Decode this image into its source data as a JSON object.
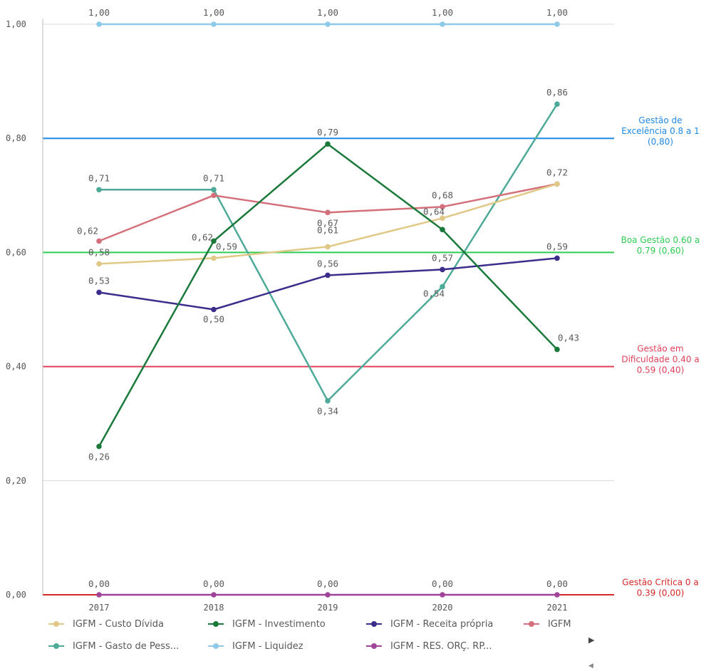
{
  "chart_data": {
    "type": "line",
    "categories": [
      "2017",
      "2018",
      "2019",
      "2020",
      "2021"
    ],
    "ylim": [
      0,
      1
    ],
    "yticks": [
      "0,00",
      "0,20",
      "0,40",
      "0,60",
      "0,80",
      "1,00"
    ],
    "ytick_values": [
      0,
      0.2,
      0.4,
      0.6,
      0.8,
      1.0
    ],
    "grid": true,
    "legend_position": "bottom",
    "series": [
      {
        "name": "IGFM - Custo Dívida",
        "color": "#e0c986",
        "values": [
          0.58,
          0.59,
          0.61,
          0.66,
          0.72
        ],
        "labels": [
          "0,58",
          "0,59",
          "0,61",
          null,
          null
        ]
      },
      {
        "name": "IGFM - Investimento",
        "color": "#1b7a3b",
        "values": [
          0.26,
          0.62,
          0.79,
          0.64,
          0.43
        ],
        "labels": [
          "0,26",
          "0,62",
          "0,79",
          "0,64",
          "0,43"
        ]
      },
      {
        "name": "IGFM - Receita própria",
        "color": "#3a2d8c",
        "values": [
          0.53,
          0.5,
          0.56,
          0.57,
          0.59
        ],
        "labels": [
          "0,53",
          "0,50",
          "0,56",
          "0,57",
          "0,59"
        ]
      },
      {
        "name": "IGFM",
        "color": "#d4707b",
        "values": [
          0.62,
          0.7,
          0.67,
          0.68,
          0.72
        ],
        "labels": [
          "0,62",
          null,
          "0,67",
          "0,68",
          "0,72"
        ]
      },
      {
        "name": "IGFM - Gasto de Pess...",
        "color": "#4daa99",
        "values": [
          0.71,
          0.71,
          0.34,
          0.54,
          0.86
        ],
        "labels": [
          "0,71",
          "0,71",
          "0,34",
          "0,54",
          "0,86"
        ]
      },
      {
        "name": "IGFM - Liquidez",
        "color": "#8ecae8",
        "values": [
          1.0,
          1.0,
          1.0,
          1.0,
          1.0
        ],
        "labels": [
          "1,00",
          "1,00",
          "1,00",
          "1,00",
          "1,00"
        ]
      },
      {
        "name": "IGFM - RES. ORÇ. RP...",
        "color": "#a0449a",
        "values": [
          0,
          0,
          0,
          0,
          0
        ],
        "labels": [
          "0,00",
          "0,00",
          "0,00",
          "0,00",
          "0,00"
        ]
      }
    ],
    "reference_lines": [
      {
        "value": 0.8,
        "color": "#1e88e5",
        "label_lines": [
          "Gestão de",
          "Excelência 0.8 a 1",
          "(0,80)"
        ]
      },
      {
        "value": 0.6,
        "color": "#2ecc55",
        "label_lines": [
          "Boa Gestão 0.60 a",
          "0.79 (0,60)"
        ]
      },
      {
        "value": 0.4,
        "color": "#e0405a",
        "label_lines": [
          "Gestão em",
          "Dificuldade 0.40 a",
          "0.59 (0,40)"
        ]
      },
      {
        "value": 0.0,
        "color": "#d62728",
        "label_lines": [
          "Gestão Crítica 0 a",
          "0.39 (0,00)"
        ]
      }
    ]
  },
  "legend": {
    "next_arrow": "▶",
    "prev_arrow": "◀"
  }
}
